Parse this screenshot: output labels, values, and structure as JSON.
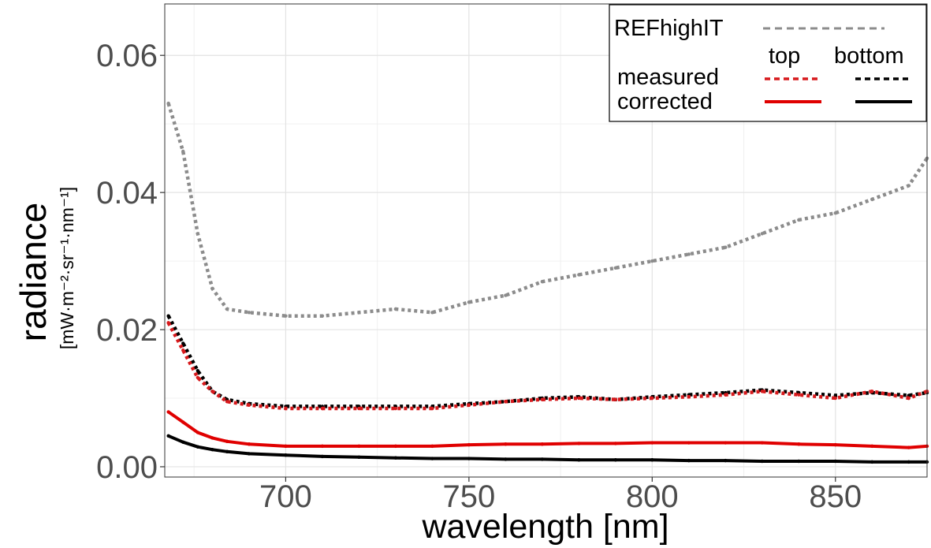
{
  "chart_data": {
    "type": "line",
    "xlabel": "wavelength [nm]",
    "ylabel": "radiance",
    "ylabel_unit": "[mW·m⁻²·sr⁻¹·nm⁻¹]",
    "xlim": [
      667,
      875
    ],
    "ylim": [
      -0.0015,
      0.0675
    ],
    "x_ticks": [
      700,
      750,
      800,
      850
    ],
    "x_tick_labels": [
      "700",
      "750",
      "800",
      "850"
    ],
    "y_ticks": [
      0.0,
      0.02,
      0.04,
      0.06
    ],
    "y_tick_labels": [
      "0.00",
      "0.02",
      "0.04",
      "0.06"
    ],
    "grid": true,
    "legend": {
      "position": "top-right",
      "ref_label": "REFhighIT",
      "col_top": "top",
      "col_bottom": "bottom",
      "row_measured": "measured",
      "row_corrected": "corrected"
    },
    "series": [
      {
        "name": "REFhighIT",
        "color": "#8c8c8c",
        "style": "dotted",
        "x": [
          668,
          672,
          676,
          680,
          684,
          690,
          700,
          710,
          720,
          730,
          740,
          750,
          760,
          770,
          780,
          790,
          800,
          810,
          820,
          830,
          840,
          850,
          860,
          870,
          875
        ],
        "values": [
          0.053,
          0.046,
          0.034,
          0.026,
          0.023,
          0.0225,
          0.022,
          0.022,
          0.0225,
          0.023,
          0.0225,
          0.024,
          0.025,
          0.027,
          0.028,
          0.029,
          0.03,
          0.031,
          0.032,
          0.034,
          0.036,
          0.037,
          0.039,
          0.041,
          0.045
        ]
      },
      {
        "name": "measured top",
        "color": "#d7191c",
        "style": "dotted",
        "x": [
          668,
          672,
          676,
          680,
          684,
          690,
          700,
          710,
          720,
          730,
          740,
          750,
          760,
          770,
          780,
          790,
          800,
          810,
          820,
          830,
          840,
          850,
          860,
          870,
          875
        ],
        "values": [
          0.021,
          0.017,
          0.013,
          0.011,
          0.0095,
          0.009,
          0.0085,
          0.0085,
          0.0085,
          0.0085,
          0.0085,
          0.009,
          0.0095,
          0.0098,
          0.01,
          0.0098,
          0.01,
          0.0102,
          0.0105,
          0.011,
          0.0105,
          0.01,
          0.011,
          0.01,
          0.011
        ]
      },
      {
        "name": "measured bottom",
        "color": "#000000",
        "style": "dotted",
        "x": [
          668,
          672,
          676,
          680,
          684,
          690,
          700,
          710,
          720,
          730,
          740,
          750,
          760,
          770,
          780,
          790,
          800,
          810,
          820,
          830,
          840,
          850,
          860,
          870,
          875
        ],
        "values": [
          0.022,
          0.018,
          0.014,
          0.011,
          0.0098,
          0.0092,
          0.0088,
          0.0088,
          0.0088,
          0.0088,
          0.0088,
          0.0092,
          0.0095,
          0.01,
          0.0102,
          0.0098,
          0.0102,
          0.0105,
          0.0108,
          0.0112,
          0.0108,
          0.0104,
          0.0108,
          0.0104,
          0.0108
        ]
      },
      {
        "name": "corrected top",
        "color": "#e00000",
        "style": "solid",
        "x": [
          668,
          672,
          676,
          680,
          684,
          690,
          700,
          710,
          720,
          730,
          740,
          750,
          760,
          770,
          780,
          790,
          800,
          810,
          820,
          830,
          840,
          850,
          860,
          870,
          875
        ],
        "values": [
          0.008,
          0.0065,
          0.005,
          0.0042,
          0.0037,
          0.0033,
          0.003,
          0.003,
          0.003,
          0.003,
          0.003,
          0.0032,
          0.0033,
          0.0033,
          0.0034,
          0.0034,
          0.0035,
          0.0035,
          0.0035,
          0.0035,
          0.0033,
          0.0032,
          0.003,
          0.0028,
          0.003
        ]
      },
      {
        "name": "corrected bottom",
        "color": "#000000",
        "style": "solid",
        "x": [
          668,
          672,
          676,
          680,
          684,
          690,
          700,
          710,
          720,
          730,
          740,
          750,
          760,
          770,
          780,
          790,
          800,
          810,
          820,
          830,
          840,
          850,
          860,
          870,
          875
        ],
        "values": [
          0.0045,
          0.0036,
          0.0029,
          0.0025,
          0.0022,
          0.0019,
          0.0017,
          0.0015,
          0.0014,
          0.0013,
          0.0012,
          0.0012,
          0.0011,
          0.0011,
          0.001,
          0.001,
          0.001,
          0.0009,
          0.0009,
          0.0008,
          0.0008,
          0.0008,
          0.0007,
          0.0007,
          0.0007
        ]
      }
    ]
  }
}
